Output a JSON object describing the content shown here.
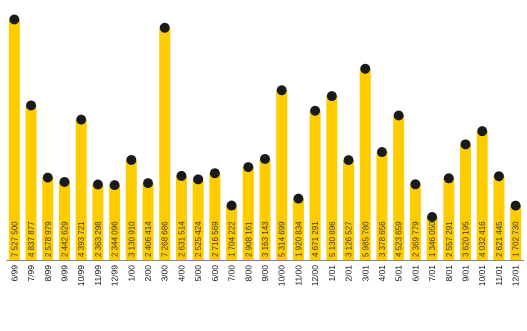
{
  "chart_data": {
    "type": "bar",
    "categories": [
      "6/99",
      "7/99",
      "8/99",
      "9/99",
      "10/99",
      "11/99",
      "12/99",
      "1/00",
      "2/00",
      "3/00",
      "4/00",
      "5/00",
      "6/00",
      "7/00",
      "8/00",
      "9/00",
      "10/00",
      "11/00",
      "12/00",
      "1/01",
      "2/01",
      "3/01",
      "4/01",
      "5/01",
      "6/01",
      "7/01",
      "8/01",
      "9/01",
      "10/01",
      "11/01",
      "12/01"
    ],
    "values": [
      7527500,
      4837877,
      2578979,
      2442629,
      4393721,
      2363298,
      2344096,
      3130910,
      2406414,
      7268686,
      2631514,
      2525424,
      2716569,
      1704222,
      2908161,
      3163143,
      5314699,
      1920834,
      4671291,
      5130896,
      3126527,
      5985780,
      3378656,
      4523659,
      2369779,
      1346050,
      2557291,
      3620195,
      4032416,
      2621445,
      1702730
    ],
    "value_labels": [
      "7 527 500",
      "4 837 877",
      "2 578 979",
      "2 442 629",
      "4 393 721",
      "2 363 298",
      "2 344 096",
      "3 130 910",
      "2 406 414",
      "7 268 686",
      "2 631 514",
      "2 525 424",
      "2 716 569",
      "1 704 222",
      "2 908 161",
      "3 163 143",
      "5 314 699",
      "1 920 834",
      "4 671 291",
      "5 130 896",
      "3 126 527",
      "5 985 780",
      "3 378 656",
      "4 523 659",
      "2 369 779",
      "1 346 050",
      "2 557 291",
      "3 620 195",
      "4 032 416",
      "2 621 445",
      "1 702 730"
    ],
    "ylim": [
      0,
      7700000
    ],
    "grid": false,
    "colors": {
      "bar": "#FFCC00",
      "marker": "#1a1a1a"
    }
  }
}
